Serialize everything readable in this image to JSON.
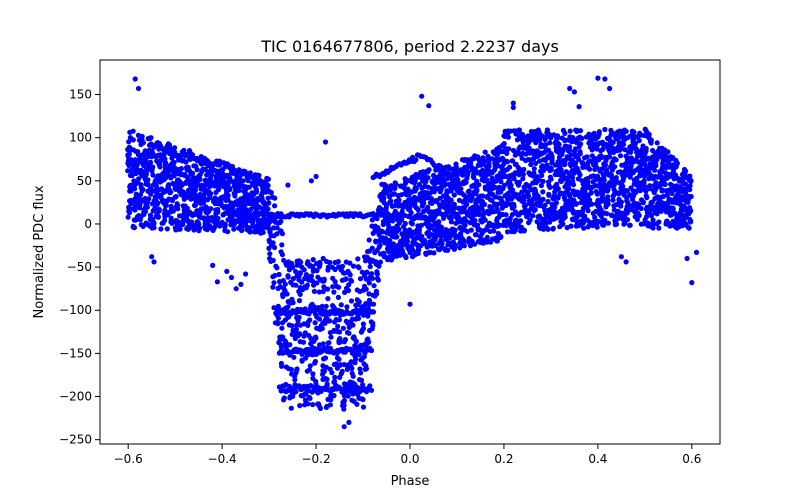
{
  "chart_data": {
    "type": "scatter",
    "title": "TIC 0164677806, period 2.2237 days",
    "xlabel": "Phase",
    "ylabel": "Normalized PDC flux",
    "xlim": [
      -0.66,
      0.66
    ],
    "ylim": [
      -255,
      190
    ],
    "xticks": [
      -0.6,
      -0.4,
      -0.2,
      0.0,
      0.2,
      0.4,
      0.6
    ],
    "xtick_labels": [
      "−0.6",
      "−0.4",
      "−0.2",
      "0.0",
      "0.2",
      "0.4",
      "0.6"
    ],
    "yticks": [
      150,
      100,
      50,
      0,
      -50,
      -100,
      -150,
      -200,
      -250
    ],
    "ytick_labels": [
      "150",
      "100",
      "50",
      "0",
      "−50",
      "−100",
      "−150",
      "−200",
      "−250"
    ],
    "grid": false,
    "marker_color": "#0000ff",
    "series": [
      {
        "name": "flux",
        "outliers": [
          [
            -0.585,
            168
          ],
          [
            -0.578,
            157
          ],
          [
            -0.55,
            -38
          ],
          [
            -0.545,
            -44
          ],
          [
            -0.42,
            -48
          ],
          [
            -0.41,
            -67
          ],
          [
            -0.39,
            -55
          ],
          [
            -0.38,
            -62
          ],
          [
            -0.37,
            -75
          ],
          [
            -0.36,
            -70
          ],
          [
            -0.35,
            -58
          ],
          [
            -0.26,
            45
          ],
          [
            -0.21,
            50
          ],
          [
            -0.2,
            55
          ],
          [
            -0.18,
            95
          ],
          [
            -0.06,
            46
          ],
          [
            0.025,
            148
          ],
          [
            0.04,
            137
          ],
          [
            0.0,
            -93
          ],
          [
            0.22,
            140
          ],
          [
            0.22,
            135
          ],
          [
            0.34,
            157
          ],
          [
            0.35,
            153
          ],
          [
            0.36,
            136
          ],
          [
            0.4,
            169
          ],
          [
            0.415,
            168
          ],
          [
            0.425,
            157
          ],
          [
            0.45,
            -38
          ],
          [
            0.46,
            -44
          ],
          [
            0.59,
            -40
          ],
          [
            0.6,
            -68
          ],
          [
            0.61,
            -33
          ],
          [
            -0.14,
            -235
          ],
          [
            -0.13,
            -230
          ]
        ]
      }
    ]
  }
}
